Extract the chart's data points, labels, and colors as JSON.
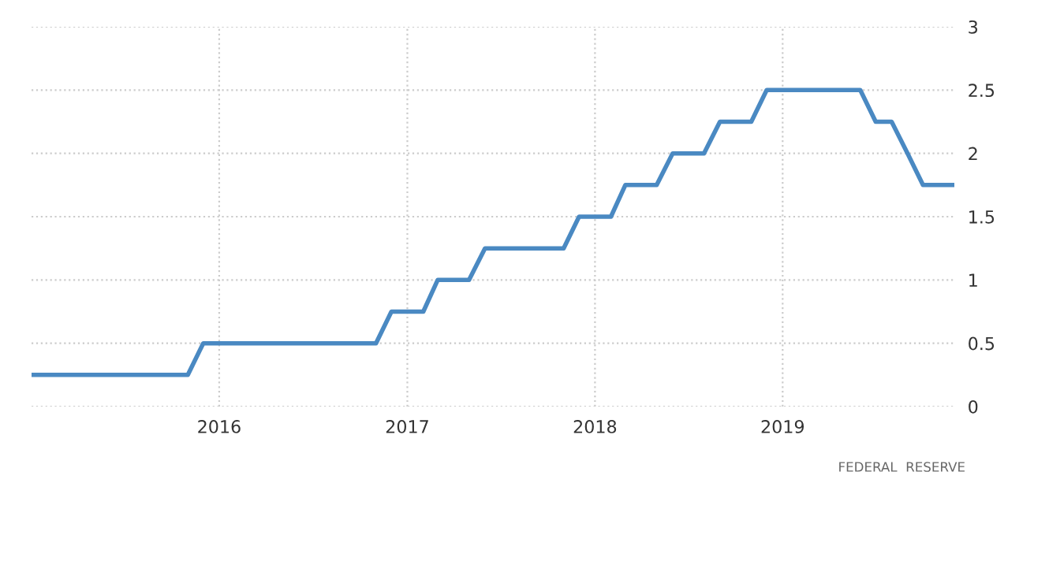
{
  "chart_data": {
    "type": "line",
    "xlim": [
      "2015-01",
      "2019-12"
    ],
    "xticks": [
      "2016",
      "2017",
      "2018",
      "2019"
    ],
    "ylim": [
      0,
      3
    ],
    "yticks": [
      0,
      0.5,
      1,
      1.5,
      2,
      2.5,
      3
    ],
    "grid": true,
    "marker": "none",
    "line_style": "solid",
    "x": [
      "2015-01",
      "2015-11",
      "2015-12",
      "2016-11",
      "2016-12",
      "2017-02",
      "2017-03",
      "2017-05",
      "2017-06",
      "2017-11",
      "2017-12",
      "2018-02",
      "2018-03",
      "2018-05",
      "2018-06",
      "2018-08",
      "2018-09",
      "2018-11",
      "2018-12",
      "2019-06",
      "2019-07",
      "2019-08",
      "2019-09",
      "2019-10",
      "2019-12"
    ],
    "series": [
      {
        "color": "#4a89c2",
        "values": [
          0.25,
          0.25,
          0.5,
          0.5,
          0.75,
          0.75,
          1,
          1,
          1.25,
          1.25,
          1.5,
          1.5,
          1.75,
          1.75,
          2,
          2,
          2.25,
          2.25,
          2.5,
          2.5,
          2.25,
          2.25,
          2,
          1.75,
          1.75
        ]
      }
    ],
    "annotations": [
      "FEDERAL  RESERVE"
    ]
  }
}
